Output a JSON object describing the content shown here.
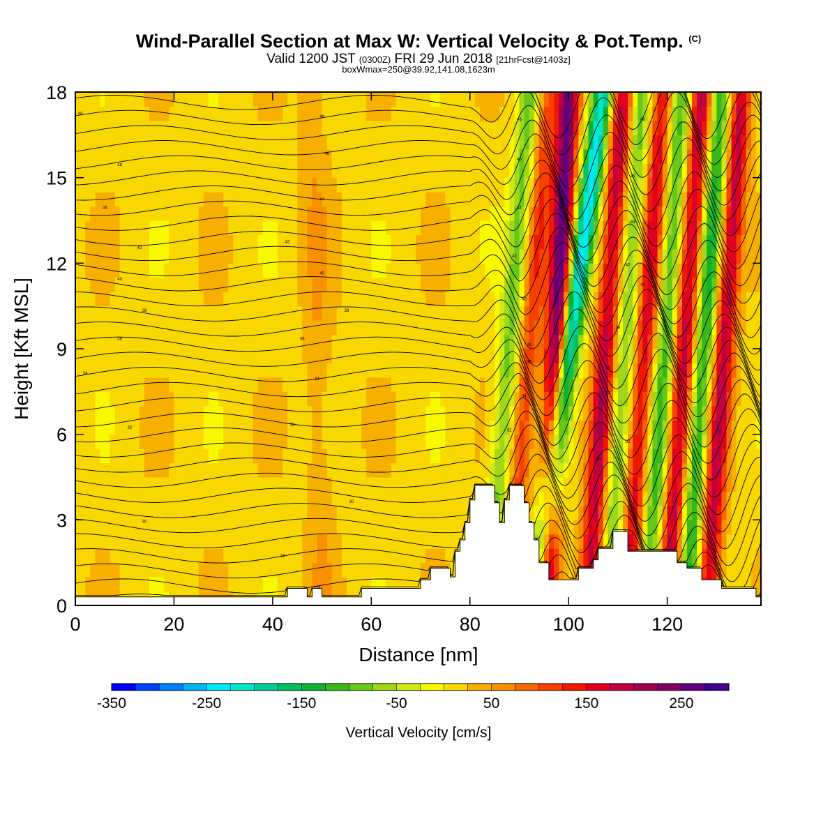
{
  "header": {
    "title": "Wind-Parallel Section at Max W: Vertical Velocity & Pot.Temp.",
    "title_mark": "(C)",
    "valid_prefix": "Valid 1200 JST",
    "valid_utc": "(0300Z)",
    "valid_date": "FRI 29 Jun 2018",
    "forecast_info": "[21hrFcst@1403z]",
    "box_info": "boxWmax=250@39.92,141.08,1623m"
  },
  "colorbar": {
    "title": "Vertical Velocity [cm/s]",
    "tick_labels": [
      "-350",
      "-250",
      "-150",
      "-50",
      "50",
      "150",
      "250"
    ],
    "tick_values": [
      -350,
      -250,
      -150,
      -50,
      50,
      150,
      250
    ],
    "min": -350,
    "max": 300,
    "step": 25,
    "colors": [
      "#0000f0",
      "#0040f8",
      "#0080f8",
      "#00b4f8",
      "#00e8f8",
      "#00e8c8",
      "#00d098",
      "#00c060",
      "#10b030",
      "#38b818",
      "#68c818",
      "#a0d818",
      "#d0e818",
      "#f8f800",
      "#f8d800",
      "#f8b000",
      "#f89000",
      "#f86800",
      "#f84000",
      "#f01800",
      "#e00020",
      "#c00040",
      "#a00050",
      "#800060",
      "#600080",
      "#400090"
    ]
  },
  "chart_data": {
    "type": "heatmap",
    "title": "Wind-Parallel Section at Max W: Vertical Velocity & Pot.Temp.",
    "xlabel": "Distance [nm]",
    "ylabel": "Height [Kft MSL]",
    "xlim": [
      0,
      139
    ],
    "ylim": [
      0,
      18
    ],
    "x_ticks": [
      0,
      20,
      40,
      60,
      80,
      100,
      120
    ],
    "y_ticks": [
      0,
      3,
      6,
      9,
      12,
      15,
      18
    ],
    "filled_field": "Vertical Velocity [cm/s]",
    "contour_field": "Potential temperature (C)",
    "wave_bands": [
      {
        "x_top": 92,
        "x_bottom": 84,
        "w": -100
      },
      {
        "x_top": 96,
        "x_bottom": 88,
        "w": 100
      },
      {
        "x_top": 100,
        "x_bottom": 95,
        "w": 250
      },
      {
        "x_top": 107,
        "x_bottom": 93,
        "w": -250
      },
      {
        "x_top": 111,
        "x_bottom": 104,
        "w": 175
      },
      {
        "x_top": 115,
        "x_bottom": 108,
        "w": -100
      },
      {
        "x_top": 119,
        "x_bottom": 112,
        "w": 150
      },
      {
        "x_top": 123,
        "x_bottom": 116,
        "w": -125
      },
      {
        "x_top": 127,
        "x_bottom": 120,
        "w": 175
      },
      {
        "x_top": 131,
        "x_bottom": 124,
        "w": -150
      },
      {
        "x_top": 135,
        "x_bottom": 128,
        "w": 175
      }
    ],
    "terrain": [
      [
        0,
        0.3
      ],
      [
        43,
        0.3
      ],
      [
        43,
        0.6
      ],
      [
        47,
        0.6
      ],
      [
        47,
        0.3
      ],
      [
        48,
        0.3
      ],
      [
        48,
        0.6
      ],
      [
        50,
        0.6
      ],
      [
        50,
        0.3
      ],
      [
        58,
        0.3
      ],
      [
        58,
        0.6
      ],
      [
        70,
        0.6
      ],
      [
        70,
        0.9
      ],
      [
        72,
        0.9
      ],
      [
        72,
        1.3
      ],
      [
        76,
        1.3
      ],
      [
        76,
        1.0
      ],
      [
        77,
        1.0
      ],
      [
        77,
        1.9
      ],
      [
        78,
        1.9
      ],
      [
        78,
        2.3
      ],
      [
        79,
        2.3
      ],
      [
        79,
        2.9
      ],
      [
        80,
        2.9
      ],
      [
        80,
        3.7
      ],
      [
        81,
        3.7
      ],
      [
        81,
        4.2
      ],
      [
        85,
        4.2
      ],
      [
        85,
        3.6
      ],
      [
        86,
        3.6
      ],
      [
        86,
        2.9
      ],
      [
        87,
        2.9
      ],
      [
        87,
        3.7
      ],
      [
        88,
        3.7
      ],
      [
        88,
        4.2
      ],
      [
        91,
        4.2
      ],
      [
        91,
        3.6
      ],
      [
        92,
        3.6
      ],
      [
        92,
        2.9
      ],
      [
        93,
        2.9
      ],
      [
        93,
        2.3
      ],
      [
        94,
        2.3
      ],
      [
        94,
        1.5
      ],
      [
        96,
        1.5
      ],
      [
        96,
        0.9
      ],
      [
        102,
        0.9
      ],
      [
        102,
        1.3
      ],
      [
        105,
        1.3
      ],
      [
        105,
        1.6
      ],
      [
        106,
        1.6
      ],
      [
        106,
        2.0
      ],
      [
        109,
        2.0
      ],
      [
        109,
        2.6
      ],
      [
        112,
        2.6
      ],
      [
        112,
        1.9
      ],
      [
        122,
        1.9
      ],
      [
        122,
        1.5
      ],
      [
        124,
        1.5
      ],
      [
        124,
        1.3
      ],
      [
        127,
        1.3
      ],
      [
        127,
        0.9
      ],
      [
        131,
        0.9
      ],
      [
        131,
        0.6
      ],
      [
        138,
        0.6
      ],
      [
        138,
        0.3
      ],
      [
        139,
        0.3
      ]
    ],
    "contour_labels": [
      {
        "x": 1,
        "y": 17.2,
        "text": "48"
      },
      {
        "x": 50,
        "y": 17.1,
        "text": "48"
      },
      {
        "x": 9,
        "y": 15.4,
        "text": "46"
      },
      {
        "x": 51,
        "y": 15.8,
        "text": "46"
      },
      {
        "x": 90,
        "y": 17.0,
        "text": "46"
      },
      {
        "x": 115,
        "y": 17.0,
        "text": "48"
      },
      {
        "x": 6,
        "y": 13.9,
        "text": "44"
      },
      {
        "x": 50,
        "y": 14.2,
        "text": "44"
      },
      {
        "x": 90,
        "y": 15.6,
        "text": "46"
      },
      {
        "x": 113,
        "y": 15.0,
        "text": "46"
      },
      {
        "x": 13,
        "y": 12.5,
        "text": "42"
      },
      {
        "x": 43,
        "y": 12.7,
        "text": "42"
      },
      {
        "x": 90,
        "y": 13.9,
        "text": "44"
      },
      {
        "x": 113,
        "y": 13.4,
        "text": "44"
      },
      {
        "x": 9,
        "y": 11.4,
        "text": "40"
      },
      {
        "x": 50,
        "y": 11.6,
        "text": "40"
      },
      {
        "x": 89,
        "y": 12.2,
        "text": "42"
      },
      {
        "x": 112,
        "y": 11.9,
        "text": "42"
      },
      {
        "x": 14,
        "y": 10.3,
        "text": "38"
      },
      {
        "x": 55,
        "y": 10.3,
        "text": "38"
      },
      {
        "x": 91,
        "y": 10.7,
        "text": "40"
      },
      {
        "x": 115,
        "y": 11.2,
        "text": "40"
      },
      {
        "x": 9,
        "y": 9.3,
        "text": "36"
      },
      {
        "x": 46,
        "y": 9.3,
        "text": "36"
      },
      {
        "x": 92,
        "y": 9.1,
        "text": "38"
      },
      {
        "x": 110,
        "y": 9.7,
        "text": "38"
      },
      {
        "x": 2,
        "y": 8.1,
        "text": "34"
      },
      {
        "x": 49,
        "y": 7.9,
        "text": "34"
      },
      {
        "x": 92,
        "y": 8.5,
        "text": "36"
      },
      {
        "x": 108,
        "y": 8.3,
        "text": "36"
      },
      {
        "x": 11,
        "y": 6.2,
        "text": "32"
      },
      {
        "x": 44,
        "y": 6.3,
        "text": "32"
      },
      {
        "x": 91,
        "y": 7.3,
        "text": "34"
      },
      {
        "x": 108,
        "y": 7.4,
        "text": "34"
      },
      {
        "x": 56,
        "y": 3.6,
        "text": "30"
      },
      {
        "x": 88,
        "y": 6.1,
        "text": "32"
      },
      {
        "x": 112,
        "y": 5.7,
        "text": "32"
      },
      {
        "x": 14,
        "y": 2.9,
        "text": "30"
      },
      {
        "x": 42,
        "y": 1.7,
        "text": "28"
      },
      {
        "x": 106,
        "y": 5.1,
        "text": "30"
      }
    ]
  }
}
